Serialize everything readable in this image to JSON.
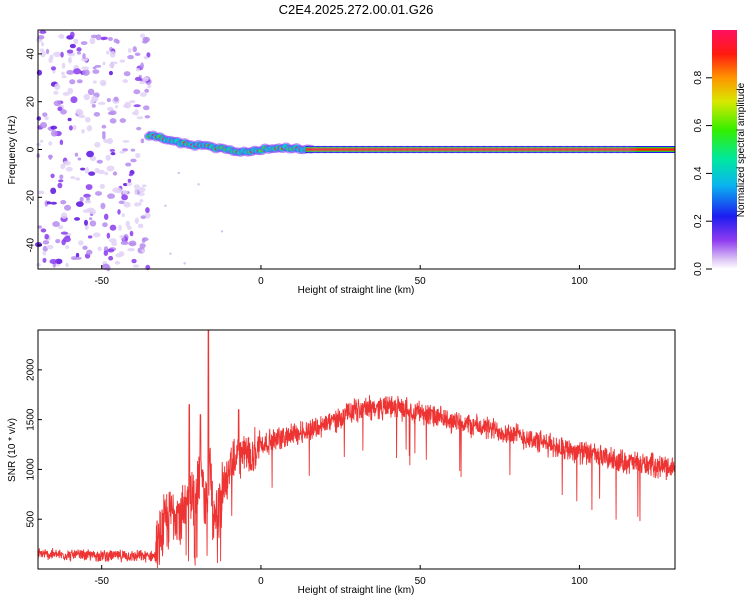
{
  "title": "C2E4.2025.272.00.01.G26",
  "chart_data": [
    {
      "type": "heatmap",
      "xlabel": "Height of straight line (km)",
      "ylabel": "Frequency (Hz)",
      "xlim": [
        -70,
        130
      ],
      "ylim": [
        -50,
        50
      ],
      "xticks": [
        -50,
        0,
        50,
        100
      ],
      "yticks": [
        -40,
        -20,
        0,
        20,
        40
      ],
      "colorbar": {
        "label": "Normalized spectral amplitude",
        "range": [
          0,
          1
        ],
        "ticks": [
          "0.0",
          "0.2",
          "0.4",
          "0.6",
          "0.8"
        ],
        "tick_values": [
          0.0,
          0.2,
          0.4,
          0.6,
          0.8
        ]
      },
      "noise_region_x": [
        -70,
        -35
      ],
      "ridge": {
        "x": [
          -35,
          -32,
          -28,
          -25,
          -22,
          -19,
          -16,
          -13,
          -10,
          -7,
          -4,
          0,
          4,
          8,
          11,
          14,
          130
        ],
        "freq": [
          6,
          5,
          3.5,
          2.5,
          2,
          1.5,
          1,
          0.5,
          -0.5,
          -1,
          -0.5,
          0,
          0.5,
          1,
          0.3,
          0,
          0
        ]
      }
    },
    {
      "type": "line",
      "xlabel": "Height of straight line (km)",
      "ylabel": "SNR (10 * v/v)",
      "xlim": [
        -70,
        130
      ],
      "ylim": [
        0,
        2400
      ],
      "xticks": [
        -50,
        0,
        50,
        100
      ],
      "yticks": [
        500,
        1000,
        1500,
        2000
      ],
      "series_color": "#ee3333",
      "envelope": {
        "x": [
          -70,
          -60,
          -50,
          -40,
          -33,
          -31,
          -29,
          -27,
          -25,
          -23,
          -21,
          -19,
          -17,
          -16,
          -15,
          -14,
          -12,
          -10,
          -8,
          -6,
          -4,
          -2,
          0,
          5,
          10,
          15,
          20,
          25,
          30,
          35,
          40,
          45,
          50,
          55,
          60,
          70,
          80,
          90,
          100,
          110,
          120,
          130
        ],
        "y": [
          150,
          140,
          135,
          130,
          130,
          380,
          500,
          620,
          520,
          800,
          700,
          900,
          600,
          1050,
          500,
          450,
          800,
          950,
          1100,
          1150,
          1150,
          1200,
          1250,
          1300,
          1350,
          1400,
          1450,
          1520,
          1600,
          1620,
          1630,
          1610,
          1580,
          1520,
          1480,
          1420,
          1350,
          1250,
          1180,
          1100,
          1050,
          1020
        ]
      },
      "spikes": [
        {
          "x": -16.5,
          "y": 2400
        },
        {
          "x": -22.5,
          "y": 1650
        },
        {
          "x": -19,
          "y": 1550
        },
        {
          "x": -7,
          "y": 1600
        }
      ]
    }
  ]
}
